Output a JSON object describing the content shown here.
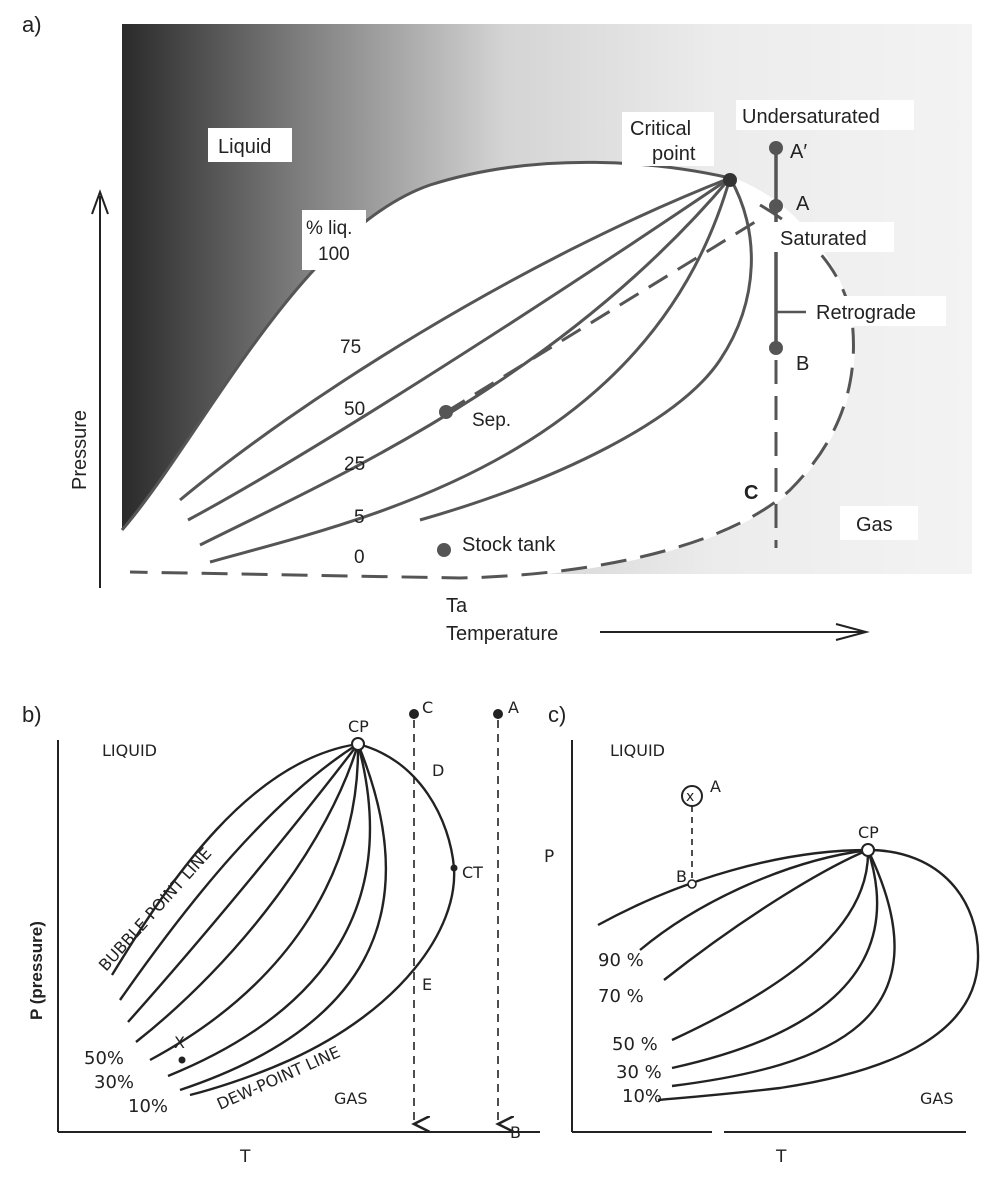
{
  "panel_a": {
    "tag": "a)",
    "liquid": "Liquid",
    "gas": "Gas",
    "critical_1": "Critical",
    "critical_2": "point",
    "undersaturated": "Undersaturated",
    "saturated": "Saturated",
    "retrograde": "Retrograde",
    "pct_liq_1": "% liq.",
    "pct_liq_2": "100",
    "q75": "75",
    "q50": "50",
    "q25": "25",
    "q5": "5",
    "q0": "0",
    "sep": "Sep.",
    "stock_tank": "Stock tank",
    "pt_a_prime": "A′",
    "pt_a": "A",
    "pt_b": "B",
    "pt_c": "C",
    "ta": "Ta",
    "xlabel": "Temperature",
    "ylabel": "Pressure",
    "colors": {
      "dark": "#2a2a2a",
      "light": "#f0f0f0"
    }
  },
  "panel_b": {
    "tag": "b)",
    "liquid": "LIQUID",
    "gas": "GAS",
    "cp": "CP",
    "ct": "CT",
    "bubble": "BUBBLE-POINT LINE",
    "dew": "DEW-POINT LINE",
    "p50": "50%",
    "p30": "30%",
    "p10": "10%",
    "x_mark": "X",
    "pt_a": "A",
    "pt_b": "B",
    "pt_c": "C",
    "pt_d": "D",
    "pt_e": "E",
    "xlabel": "T",
    "ylabel": "P (pressure)"
  },
  "panel_c": {
    "tag": "c)",
    "liquid": "LIQUID",
    "gas": "GAS",
    "cp": "CP",
    "p90": "90 %",
    "p70": "70 %",
    "p50": "50 %",
    "p30": "30 %",
    "p10": "10%",
    "pt_a": "A",
    "pt_b": "B",
    "x_mark": "x",
    "xlabel": "T",
    "ylabel": "P"
  }
}
